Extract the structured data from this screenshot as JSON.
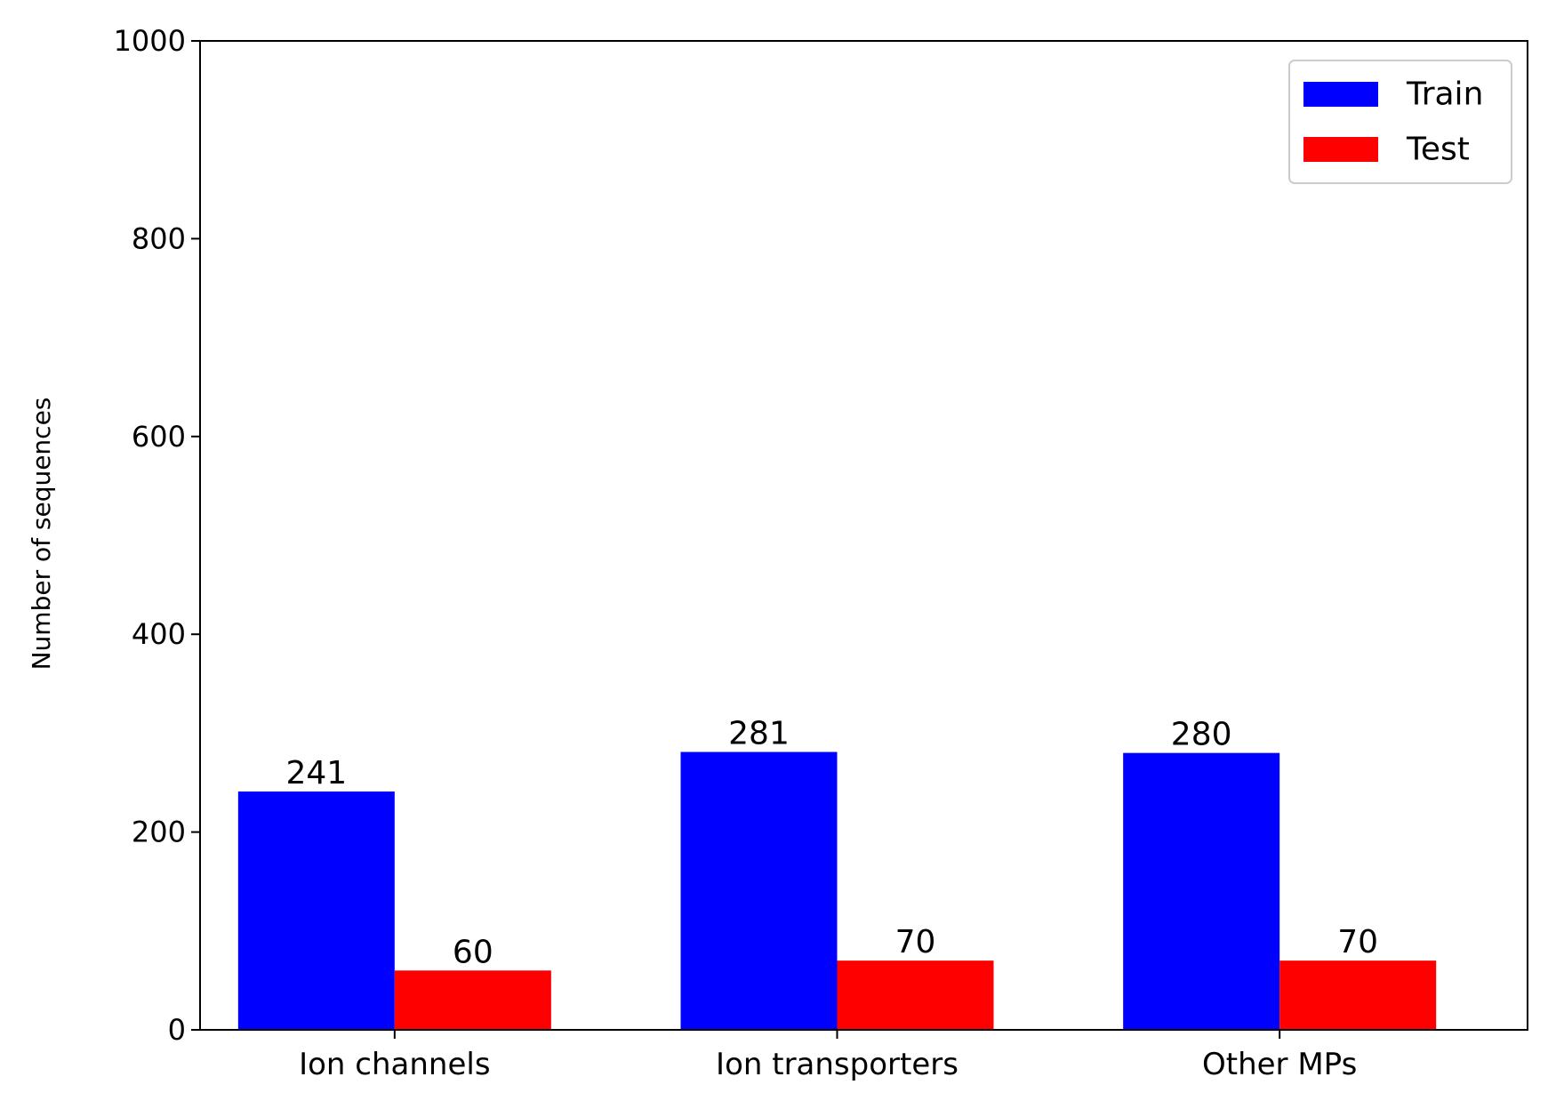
{
  "chart_data": {
    "type": "bar",
    "title": "",
    "xlabel": "",
    "ylabel": "Number of sequences",
    "categories": [
      "Ion channels",
      "Ion transporters",
      "Other MPs"
    ],
    "series": [
      {
        "name": "Train",
        "values": [
          241,
          281,
          280
        ],
        "color": "#0000ff"
      },
      {
        "name": "Test",
        "values": [
          60,
          70,
          70
        ],
        "color": "#ff0000"
      }
    ],
    "ylim": [
      0,
      1000
    ],
    "yticks": [
      0,
      200,
      400,
      600,
      800,
      1000
    ],
    "data_labels": true,
    "grid": false,
    "legend": {
      "position": "top-right"
    }
  }
}
